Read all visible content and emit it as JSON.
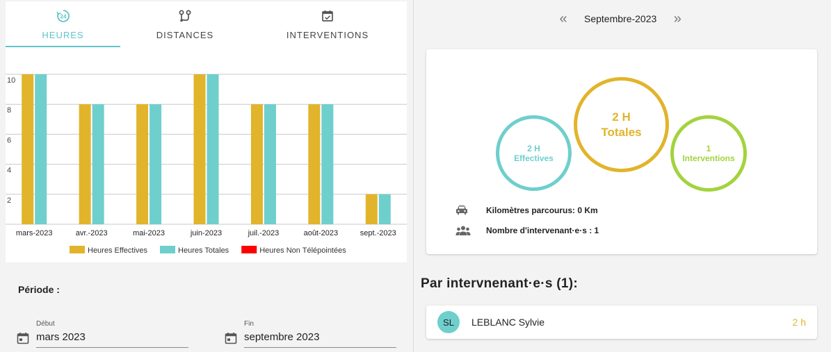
{
  "tabs": [
    {
      "label": "HEURES",
      "icon": "clock-24-icon",
      "active": true
    },
    {
      "label": "DISTANCES",
      "icon": "route-icon",
      "active": false
    },
    {
      "label": "INTERVENTIONS",
      "icon": "calendar-check-icon",
      "active": false
    }
  ],
  "chart_data": {
    "type": "bar",
    "categories": [
      "mars-2023",
      "avr.-2023",
      "mai-2023",
      "juin-2023",
      "juil.-2023",
      "août-2023",
      "sept.-2023"
    ],
    "series": [
      {
        "name": "Heures Effectives",
        "color": "#e2b42b",
        "values": [
          10,
          8,
          8,
          10,
          8,
          8,
          2
        ]
      },
      {
        "name": "Heures Totales",
        "color": "#6ecfcd",
        "values": [
          10,
          8,
          8,
          10,
          8,
          8,
          2
        ]
      },
      {
        "name": "Heures Non Télépointées",
        "color": "#ff0000",
        "values": [
          0,
          0,
          0,
          0,
          0,
          0,
          0
        ]
      }
    ],
    "yticks": [
      2,
      4,
      6,
      8,
      10
    ],
    "ylim": [
      0,
      10
    ],
    "grid": true,
    "legend": "bottom"
  },
  "periode": {
    "label": "Période :",
    "debut": {
      "label": "Début",
      "value": "mars 2023"
    },
    "fin": {
      "label": "Fin",
      "value": "septembre 2023"
    }
  },
  "month_nav": {
    "prev": "«",
    "label": "Septembre-2023",
    "next": "»"
  },
  "summary": {
    "effectives_value": "2 H",
    "effectives_label": "Effectives",
    "totales_value": "2 H",
    "totales_label": "Totales",
    "interventions_value": "1",
    "interventions_label": "Interventions",
    "km_text": "Kilomètres parcourus: 0 Km",
    "intervenants_text": "Nombre d'intervenant·e·s : 1",
    "colors": {
      "effectives": "#6ecfcd",
      "totales": "#e2b42b",
      "interventions": "#a3d33d"
    }
  },
  "section_title": "Par intervnenant·e·s (1):",
  "intervenants": [
    {
      "initials": "SL",
      "name": "LEBLANC Sylvie",
      "hours": "2 h"
    }
  ]
}
